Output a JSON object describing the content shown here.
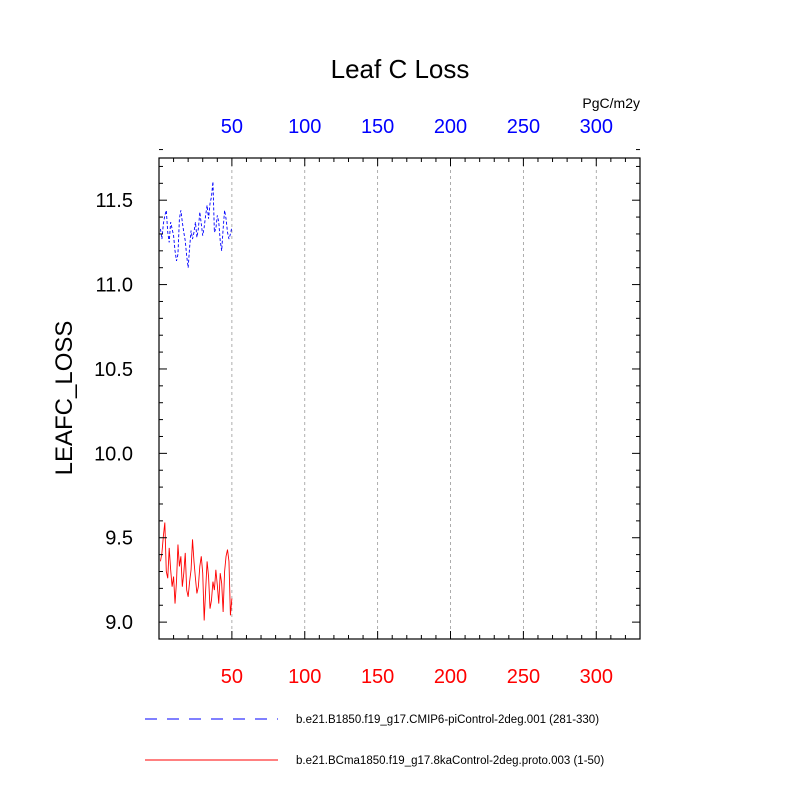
{
  "chart_data": {
    "type": "line",
    "title": "Leaf C Loss",
    "ylabel": "LEAFC_LOSS",
    "units": "PgC/m2y",
    "xlim": [
      0,
      330
    ],
    "ylim": [
      8.9,
      11.75
    ],
    "grid": {
      "x": true,
      "y": false
    },
    "legend_position": "bottom",
    "bottom_axis": {
      "color": "#ff0000",
      "ticks": [
        50,
        100,
        150,
        200,
        250,
        300
      ]
    },
    "top_axis": {
      "color": "#0000ff",
      "ticks": [
        50,
        100,
        150,
        200,
        250,
        300
      ]
    },
    "y_ticks": [
      "9.0",
      "9.5",
      "10.0",
      "10.5",
      "11.0",
      "11.5"
    ],
    "series": [
      {
        "name": "b.e21.B1850.f19_g17.CMIP6-piControl-2deg.001 (281-330)",
        "color": "#0000ff",
        "dash": "dashed",
        "x": [
          1,
          2,
          3,
          4,
          5,
          6,
          7,
          8,
          9,
          10,
          11,
          12,
          13,
          14,
          15,
          16,
          17,
          18,
          19,
          20,
          21,
          22,
          23,
          24,
          25,
          26,
          27,
          28,
          29,
          30,
          31,
          32,
          33,
          34,
          35,
          36,
          37,
          38,
          39,
          40,
          41,
          42,
          43,
          44,
          45,
          46,
          47,
          48,
          49,
          50
        ],
        "y": [
          11.33,
          11.27,
          11.36,
          11.41,
          11.44,
          11.31,
          11.25,
          11.37,
          11.33,
          11.29,
          11.2,
          11.14,
          11.18,
          11.39,
          11.44,
          11.37,
          11.31,
          11.26,
          11.17,
          11.1,
          11.22,
          11.32,
          11.27,
          11.31,
          11.37,
          11.28,
          11.33,
          11.43,
          11.36,
          11.29,
          11.34,
          11.41,
          11.47,
          11.39,
          11.48,
          11.52,
          11.61,
          11.31,
          11.33,
          11.41,
          11.37,
          11.26,
          11.2,
          11.33,
          11.44,
          11.39,
          11.31,
          11.27,
          11.3,
          11.34
        ]
      },
      {
        "name": "b.e21.BCma1850.f19_g17.8kaControl-2deg.proto.003 (1-50)",
        "color": "#ff0000",
        "dash": "solid",
        "x": [
          1,
          2,
          3,
          4,
          5,
          6,
          7,
          8,
          9,
          10,
          11,
          12,
          13,
          14,
          15,
          16,
          17,
          18,
          19,
          20,
          21,
          22,
          23,
          24,
          25,
          26,
          27,
          28,
          29,
          30,
          31,
          32,
          33,
          34,
          35,
          36,
          37,
          38,
          39,
          40,
          41,
          42,
          43,
          44,
          45,
          46,
          47,
          48,
          49,
          50
        ],
        "y": [
          9.36,
          9.41,
          9.51,
          9.59,
          9.3,
          9.26,
          9.44,
          9.31,
          9.21,
          9.27,
          9.11,
          9.24,
          9.46,
          9.33,
          9.39,
          9.21,
          9.29,
          9.41,
          9.19,
          9.15,
          9.24,
          9.31,
          9.49,
          9.36,
          9.26,
          9.17,
          9.21,
          9.33,
          9.39,
          9.29,
          9.01,
          9.19,
          9.36,
          9.27,
          9.08,
          9.13,
          9.24,
          9.19,
          9.31,
          9.22,
          9.11,
          9.29,
          9.23,
          9.06,
          9.3,
          9.39,
          9.43,
          9.36,
          9.04,
          9.14
        ]
      }
    ]
  }
}
